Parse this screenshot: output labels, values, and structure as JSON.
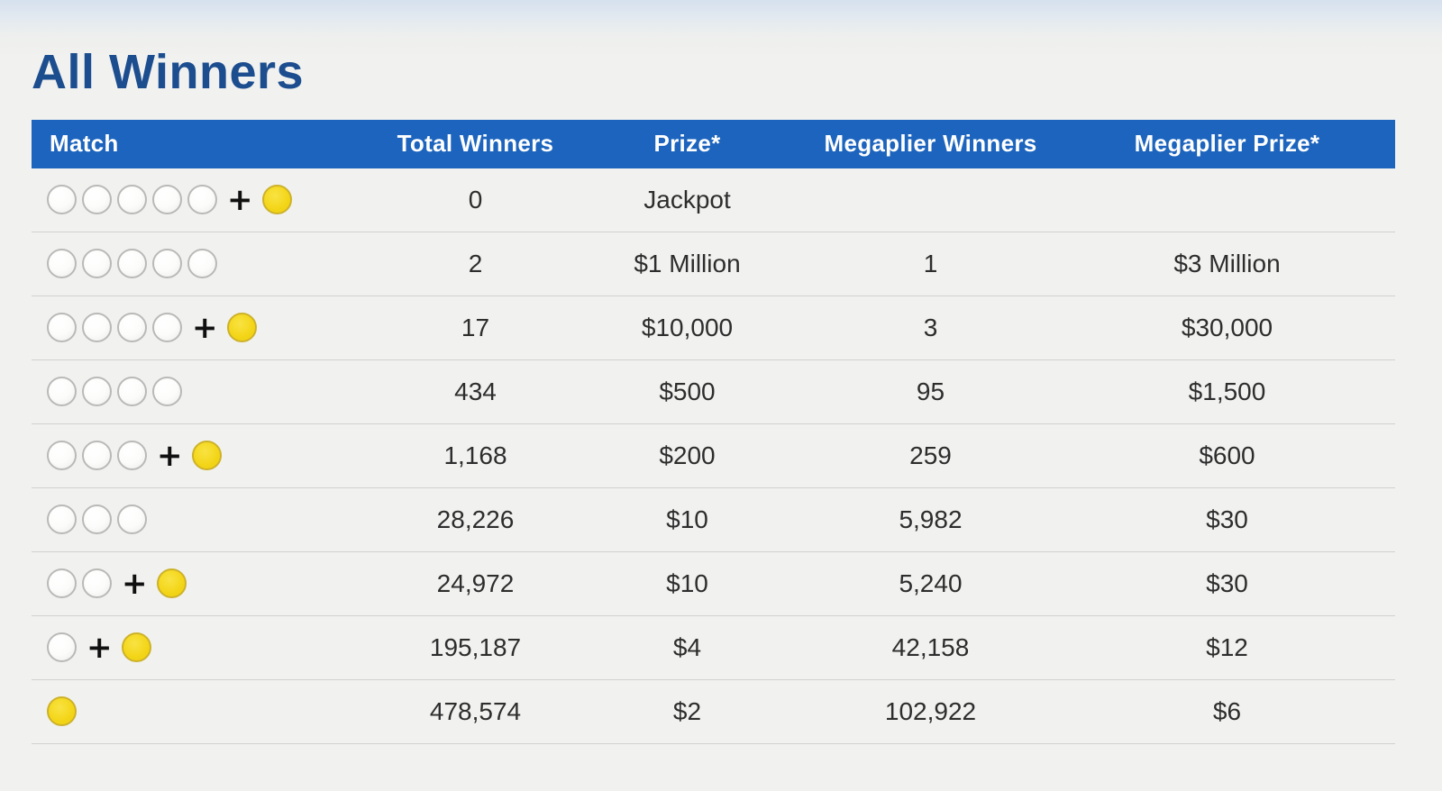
{
  "page": {
    "title": "All Winners"
  },
  "table": {
    "headers": [
      "Match",
      "Total Winners",
      "Prize*",
      "Megaplier Winners",
      "Megaplier Prize*"
    ],
    "plus_symbol": "+",
    "rows": [
      {
        "white_balls": 5,
        "mega_ball": true,
        "total_winners": "0",
        "prize": "Jackpot",
        "megaplier_winners": "",
        "megaplier_prize": ""
      },
      {
        "white_balls": 5,
        "mega_ball": false,
        "total_winners": "2",
        "prize": "$1 Million",
        "megaplier_winners": "1",
        "megaplier_prize": "$3 Million"
      },
      {
        "white_balls": 4,
        "mega_ball": true,
        "total_winners": "17",
        "prize": "$10,000",
        "megaplier_winners": "3",
        "megaplier_prize": "$30,000"
      },
      {
        "white_balls": 4,
        "mega_ball": false,
        "total_winners": "434",
        "prize": "$500",
        "megaplier_winners": "95",
        "megaplier_prize": "$1,500"
      },
      {
        "white_balls": 3,
        "mega_ball": true,
        "total_winners": "1,168",
        "prize": "$200",
        "megaplier_winners": "259",
        "megaplier_prize": "$600"
      },
      {
        "white_balls": 3,
        "mega_ball": false,
        "total_winners": "28,226",
        "prize": "$10",
        "megaplier_winners": "5,982",
        "megaplier_prize": "$30"
      },
      {
        "white_balls": 2,
        "mega_ball": true,
        "total_winners": "24,972",
        "prize": "$10",
        "megaplier_winners": "5,240",
        "megaplier_prize": "$30"
      },
      {
        "white_balls": 1,
        "mega_ball": true,
        "total_winners": "195,187",
        "prize": "$4",
        "megaplier_winners": "42,158",
        "megaplier_prize": "$12"
      },
      {
        "white_balls": 0,
        "mega_ball": true,
        "total_winners": "478,574",
        "prize": "$2",
        "megaplier_winners": "102,922",
        "megaplier_prize": "$6"
      }
    ]
  },
  "colors": {
    "page-bg-top": "#d6e1ee",
    "page-bg": "#f1f1ef",
    "header-bg": "#1c64bd",
    "header-text": "#ffffff",
    "title-color": "#1c4d8f",
    "cell-text": "#2d2d2d",
    "divider": "#d2d2d0",
    "white-ball-border": "#b9b9b7",
    "mega-ball-fill": "#f3d517",
    "mega-ball-border": "#cdb22a"
  }
}
